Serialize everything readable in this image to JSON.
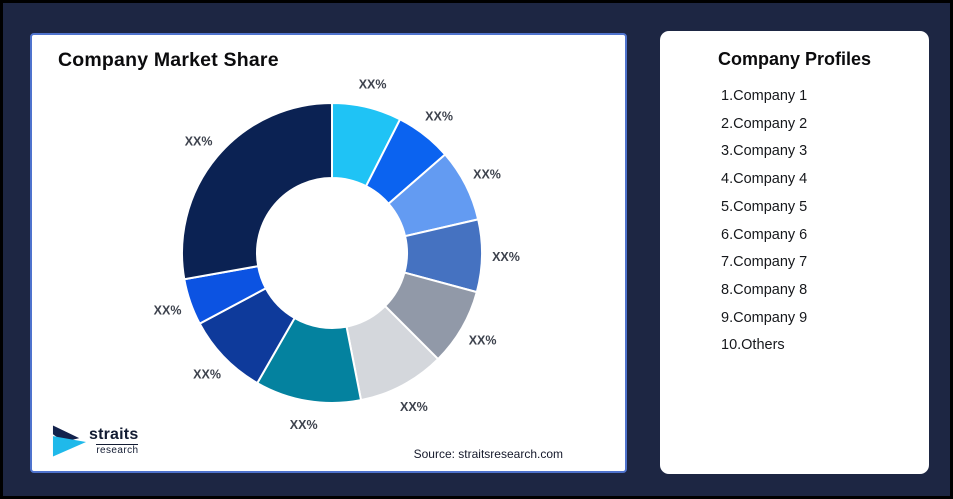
{
  "background": {
    "page_color": "#1D2643",
    "frame_border_color": "#000000",
    "card_border_color": "#4F73CD"
  },
  "left_panel": {
    "title": "Company Market Share",
    "source": "Source: straitsresearch.com",
    "logo": {
      "name": "straits",
      "subtitle": "research",
      "icon": "straits-arrow-logo",
      "navy_color": "#13224C",
      "cyan_color": "#1FB9EA"
    }
  },
  "chart_data": {
    "type": "pie",
    "subtype": "donut",
    "title": "Company Market Share",
    "start_angle_deg": 0,
    "direction": "clockwise",
    "inner_radius_ratio": 0.5,
    "legend": "none",
    "label_color": "#3d424d",
    "gap_stroke": "#ffffff",
    "categories": [
      "Company 1",
      "Company 2",
      "Company 3",
      "Company 4",
      "Company 5",
      "Company 6",
      "Company 7",
      "Company 8",
      "Company 9",
      "Others"
    ],
    "segments": [
      {
        "label": "XX%",
        "value": 7.5,
        "color": "#1FC3F5"
      },
      {
        "label": "XX%",
        "value": 6.1,
        "color": "#0B63F0"
      },
      {
        "label": "XX%",
        "value": 7.8,
        "color": "#639BF2"
      },
      {
        "label": "XX%",
        "value": 7.8,
        "color": "#4572C1"
      },
      {
        "label": "XX%",
        "value": 8.3,
        "color": "#9199A8"
      },
      {
        "label": "XX%",
        "value": 9.4,
        "color": "#D4D7DC"
      },
      {
        "label": "XX%",
        "value": 11.4,
        "color": "#04829F"
      },
      {
        "label": "XX%",
        "value": 8.9,
        "color": "#0E3A9B"
      },
      {
        "label": "XX%",
        "value": 5.0,
        "color": "#0C53E2"
      },
      {
        "label": "XX%",
        "value": 27.8,
        "color": "#0B2253"
      }
    ]
  },
  "right_panel": {
    "title": "Company Profiles",
    "items": [
      "1.Company 1",
      "2.Company 2",
      "3.Company 3",
      "4.Company 4",
      "5.Company 5",
      "6.Company 6",
      "7.Company 7",
      "8.Company 8",
      "9.Company 9",
      "10.Others"
    ]
  }
}
